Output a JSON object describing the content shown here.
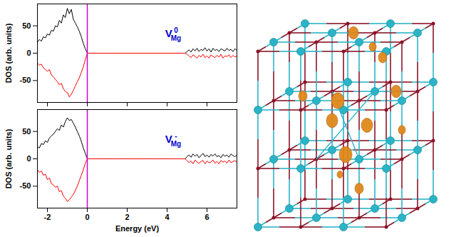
{
  "chart_data": [
    {
      "type": "line",
      "ylabel": "DOS (arb. units)",
      "xlim": [
        -2.5,
        7.5
      ],
      "xticks": [
        -2,
        0,
        2,
        4,
        6
      ],
      "ylim": [
        -90,
        90
      ],
      "yticks": [
        -50,
        0,
        50
      ],
      "grid": false,
      "tick_labels": "y",
      "reference_lines": [
        {
          "x": 0,
          "color": "#cc00cc"
        }
      ],
      "annotations": [
        {
          "text": "V",
          "superscript": "0",
          "subscript": "Mg",
          "color": "#0000cc"
        }
      ],
      "x": [
        -2.5,
        -2.4,
        -2.3,
        -2.2,
        -2.1,
        -2.0,
        -1.9,
        -1.8,
        -1.7,
        -1.6,
        -1.5,
        -1.4,
        -1.3,
        -1.2,
        -1.1,
        -1.0,
        -0.9,
        -0.8,
        -0.7,
        -0.6,
        -0.5,
        -0.4,
        -0.3,
        -0.2,
        -0.1,
        0,
        0.5,
        1,
        2,
        3,
        4,
        4.9,
        5.0,
        5.1,
        5.2,
        5.3,
        5.4,
        5.5,
        5.6,
        5.7,
        5.8,
        5.9,
        6.0,
        6.1,
        6.2,
        6.3,
        6.4,
        6.5,
        6.6,
        6.7,
        6.8,
        6.9,
        7.0,
        7.1,
        7.2,
        7.3,
        7.4,
        7.5
      ],
      "series": [
        {
          "color": "#000000",
          "values": [
            20,
            25,
            22,
            30,
            28,
            35,
            33,
            42,
            40,
            50,
            48,
            60,
            55,
            70,
            65,
            82,
            72,
            80,
            62,
            55,
            48,
            40,
            30,
            18,
            8,
            0,
            0,
            0,
            0,
            0,
            0,
            0,
            3,
            6,
            2,
            8,
            4,
            9,
            3,
            7,
            5,
            10,
            4,
            8,
            2,
            9,
            5,
            7,
            3,
            8,
            6,
            4,
            9,
            5,
            7,
            3,
            8,
            5
          ]
        },
        {
          "color": "#ff0000",
          "values": [
            -18,
            -22,
            -20,
            -27,
            -30,
            -33,
            -30,
            -40,
            -43,
            -48,
            -52,
            -58,
            -55,
            -65,
            -70,
            -72,
            -80,
            -75,
            -68,
            -60,
            -52,
            -45,
            -35,
            -25,
            -12,
            0,
            0,
            0,
            0,
            0,
            0,
            0,
            -2,
            -5,
            -8,
            -3,
            -6,
            -9,
            -4,
            -7,
            -2,
            -8,
            -5,
            -9,
            -3,
            -6,
            -8,
            -4,
            -7,
            -2,
            -9,
            -5,
            -6,
            -3,
            -8,
            -4,
            -7,
            -5
          ]
        }
      ]
    },
    {
      "type": "line",
      "xlabel": "Energy (eV)",
      "ylabel": "DOS (arb. units)",
      "xlim": [
        -2.5,
        7.5
      ],
      "xticks": [
        -2,
        0,
        2,
        4,
        6
      ],
      "ylim": [
        -90,
        90
      ],
      "yticks": [
        -50,
        0,
        50
      ],
      "grid": false,
      "tick_labels": true,
      "reference_lines": [
        {
          "x": 0,
          "color": "#cc00cc"
        }
      ],
      "annotations": [
        {
          "text": "V",
          "superscript": "-",
          "subscript": "Mg",
          "color": "#0000cc"
        }
      ],
      "x": [
        -2.5,
        -2.4,
        -2.3,
        -2.2,
        -2.1,
        -2.0,
        -1.9,
        -1.8,
        -1.7,
        -1.6,
        -1.5,
        -1.4,
        -1.3,
        -1.2,
        -1.1,
        -1.0,
        -0.9,
        -0.8,
        -0.7,
        -0.6,
        -0.5,
        -0.4,
        -0.3,
        -0.2,
        -0.1,
        0,
        0.5,
        1,
        2,
        3,
        4,
        4.9,
        5.0,
        5.1,
        5.2,
        5.3,
        5.4,
        5.5,
        5.6,
        5.7,
        5.8,
        5.9,
        6.0,
        6.1,
        6.2,
        6.3,
        6.4,
        6.5,
        6.6,
        6.7,
        6.8,
        6.9,
        7.0,
        7.1,
        7.2,
        7.3,
        7.4,
        7.5
      ],
      "series": [
        {
          "color": "#000000",
          "values": [
            22,
            20,
            28,
            26,
            33,
            30,
            38,
            42,
            45,
            50,
            55,
            52,
            62,
            58,
            68,
            75,
            70,
            72,
            65,
            58,
            50,
            42,
            32,
            20,
            10,
            0,
            0,
            0,
            0,
            0,
            0,
            0,
            4,
            7,
            3,
            9,
            5,
            8,
            2,
            6,
            10,
            4,
            7,
            3,
            8,
            5,
            9,
            4,
            6,
            2,
            8,
            5,
            7,
            3,
            9,
            6,
            4,
            7
          ]
        },
        {
          "color": "#ff0000",
          "values": [
            -20,
            -25,
            -22,
            -30,
            -28,
            -38,
            -35,
            -45,
            -48,
            -52,
            -50,
            -60,
            -58,
            -68,
            -72,
            -78,
            -75,
            -70,
            -65,
            -58,
            -50,
            -40,
            -30,
            -20,
            -8,
            0,
            0,
            0,
            0,
            0,
            0,
            0,
            -3,
            -7,
            -4,
            -9,
            -2,
            -6,
            -8,
            -5,
            -3,
            -9,
            -4,
            -7,
            -6,
            -2,
            -8,
            -5,
            -9,
            -3,
            -6,
            -4,
            -8,
            -2,
            -7,
            -5,
            -3,
            -6
          ]
        }
      ]
    }
  ]
}
